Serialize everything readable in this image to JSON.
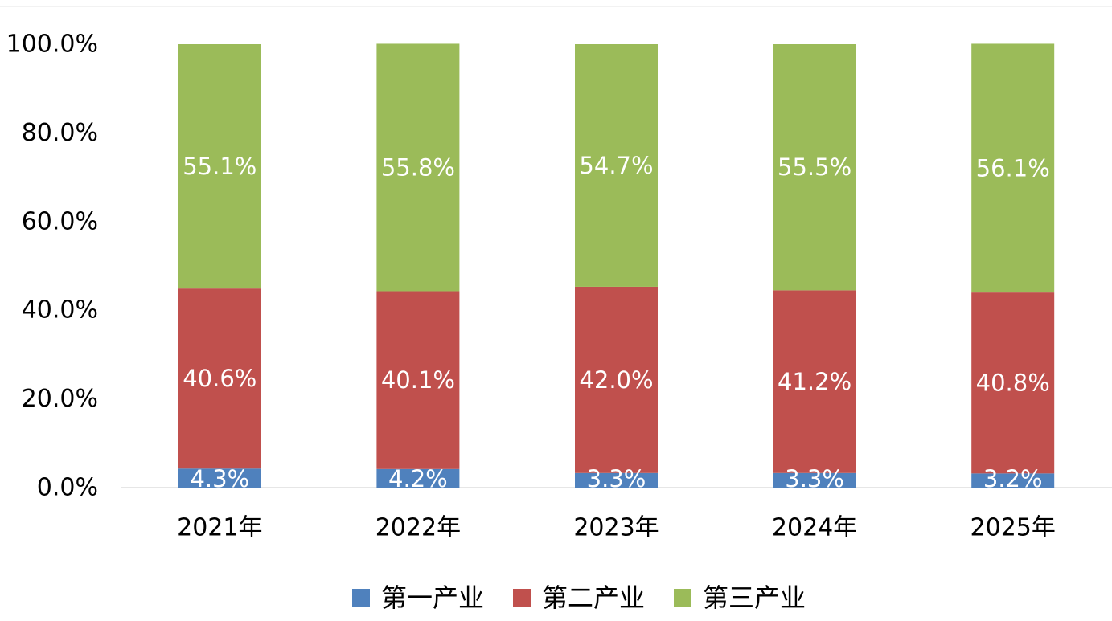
{
  "chart_data": {
    "type": "bar",
    "stacked": true,
    "categories": [
      "2021年",
      "2022年",
      "2023年",
      "2024年",
      "2025年"
    ],
    "series": [
      {
        "name": "第一产业",
        "color": "#4f81bd",
        "values": [
          4.3,
          4.2,
          3.3,
          3.3,
          3.2
        ],
        "labels": [
          "4.3%",
          "4.2%",
          "3.3%",
          "3.3%",
          "3.2%"
        ]
      },
      {
        "name": "第二产业",
        "color": "#c0504d",
        "values": [
          40.6,
          40.1,
          42.0,
          41.2,
          40.8
        ],
        "labels": [
          "40.6%",
          "40.1%",
          "42.0%",
          "41.2%",
          "40.8%"
        ]
      },
      {
        "name": "第三产业",
        "color": "#9bbb59",
        "values": [
          55.1,
          55.8,
          54.7,
          55.5,
          56.1
        ],
        "labels": [
          "55.1%",
          "55.8%",
          "54.7%",
          "55.5%",
          "56.1%"
        ]
      }
    ],
    "y_ticks": [
      "0.0%",
      "20.0%",
      "40.0%",
      "60.0%",
      "80.0%",
      "100.0%"
    ],
    "ylim": [
      0,
      100
    ],
    "title": "",
    "xlabel": "",
    "ylabel": "",
    "grid": false,
    "legend": "bottom"
  }
}
